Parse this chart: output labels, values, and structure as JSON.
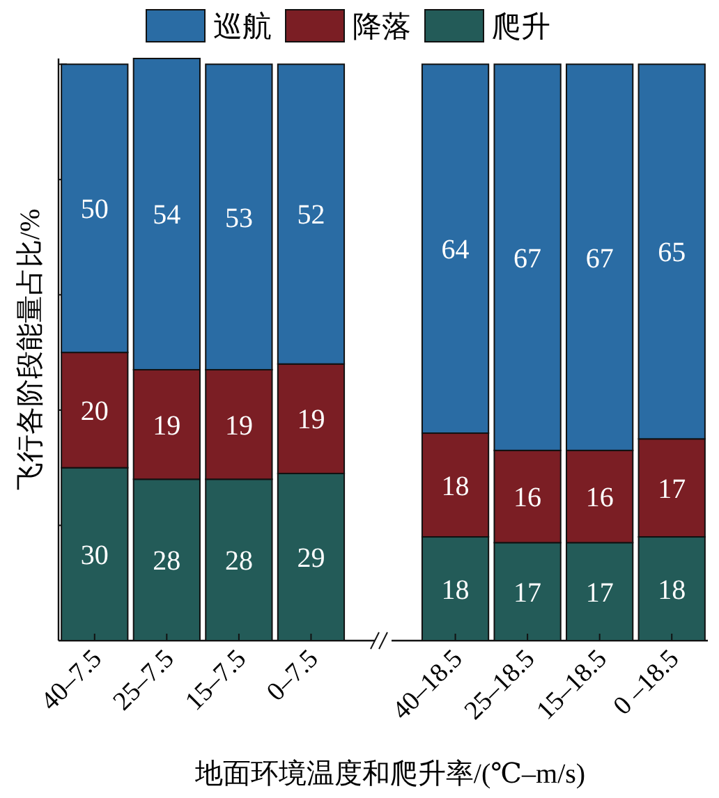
{
  "chart_data": {
    "type": "bar",
    "stacked": true,
    "xlabel": "地面环境温度和爬升率/(℃–m/s)",
    "ylabel": "飞行各阶段能量占比/%",
    "categories": [
      "40–7.5",
      "25–7.5",
      "15–7.5",
      "0–7.5",
      null,
      "40–18.5",
      "25–18.5",
      "15–18.5",
      "0 –18.5"
    ],
    "series": [
      {
        "name": "爬升",
        "color": "#235b58",
        "values": [
          30,
          28,
          28,
          29,
          null,
          18,
          17,
          17,
          18
        ]
      },
      {
        "name": "降落",
        "color": "#7b1e24",
        "values": [
          20,
          19,
          19,
          19,
          null,
          18,
          16,
          16,
          17
        ]
      },
      {
        "name": "巡航",
        "color": "#2a6ca4",
        "values": [
          50,
          54,
          53,
          52,
          null,
          64,
          67,
          67,
          65
        ]
      }
    ],
    "ylim": [
      0,
      101
    ],
    "yticks": [
      {
        "value": 0,
        "label": null
      },
      {
        "value": 20,
        "label": null
      },
      {
        "value": 40,
        "label": null
      },
      {
        "value": 60,
        "label": null
      },
      {
        "value": 80,
        "label": null
      },
      {
        "value": 100,
        "label": null
      }
    ],
    "tick_labels": "x",
    "legend": "top",
    "data_labels": true,
    "grid": false
  }
}
